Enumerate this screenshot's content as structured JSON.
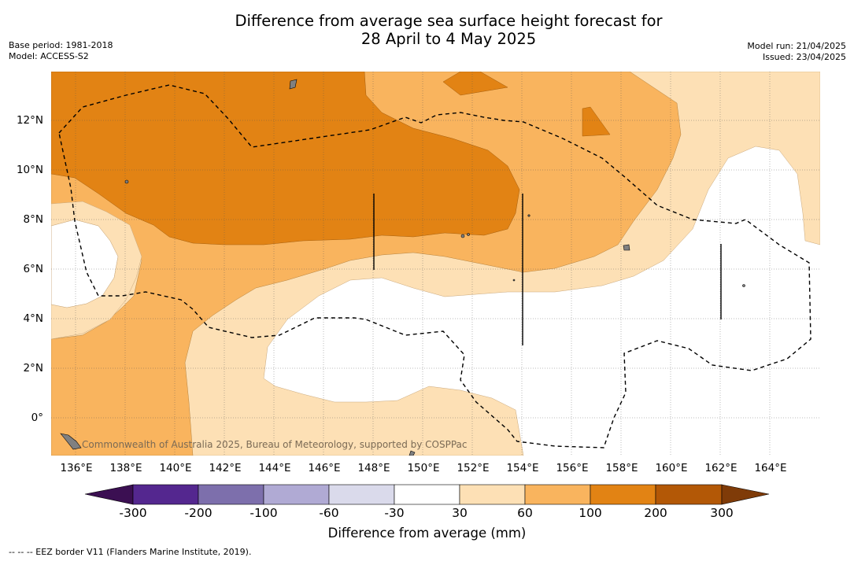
{
  "title": {
    "line1": "Difference from average sea surface height forecast for",
    "line2": "28 April to 4 May 2025"
  },
  "meta_left": {
    "base_period": "Base period: 1981-2018",
    "model": "Model: ACCESS-S2"
  },
  "meta_right": {
    "model_run": "Model run: 21/04/2025",
    "issued": "Issued: 23/04/2025"
  },
  "map": {
    "lat_labels": [
      "12°N",
      "10°N",
      "8°N",
      "6°N",
      "4°N",
      "2°N",
      "0°"
    ],
    "lon_labels": [
      "136°E",
      "138°E",
      "140°E",
      "142°E",
      "144°E",
      "146°E",
      "148°E",
      "150°E",
      "152°E",
      "154°E",
      "156°E",
      "158°E",
      "160°E",
      "162°E",
      "164°E"
    ],
    "copyright": "Commonwealth of Australia 2025, Bureau of Meteorology, supported by COSPPac",
    "eez_line_style": "dashed",
    "colors": {
      "band_30_60": "#fde0b5",
      "band_60_100": "#f9b45e",
      "band_100_200": "#e28314",
      "band_neutral": "#ffffff"
    }
  },
  "colorbar": {
    "tick_labels": [
      "-300",
      "-200",
      "-100",
      "-60",
      "-30",
      "30",
      "60",
      "100",
      "200",
      "300"
    ],
    "title": "Difference from average (mm)",
    "colors": [
      "#3b0f52",
      "#54278f",
      "#7d6fac",
      "#b0aad4",
      "#dadaeb",
      "#ffffff",
      "#fde0b5",
      "#f9b45e",
      "#e28314",
      "#b35806",
      "#7f3b08"
    ]
  },
  "footer": "--  --  -- EEZ border V11 (Flanders Marine Institute, 2019)."
}
